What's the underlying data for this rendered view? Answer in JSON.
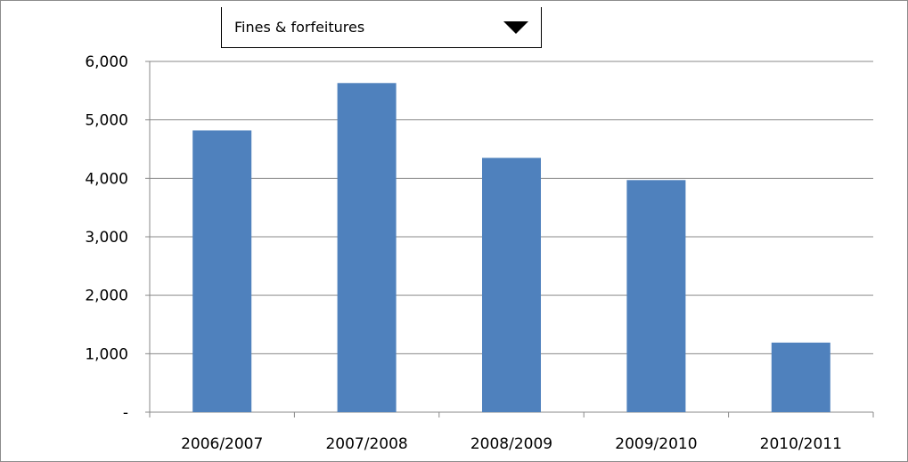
{
  "dropdown": {
    "selected": "Fines & forfeitures"
  },
  "chart_data": {
    "type": "bar",
    "categories": [
      "2006/2007",
      "2007/2008",
      "2008/2009",
      "2009/2010",
      "2010/2011"
    ],
    "values": [
      4820,
      5630,
      4350,
      3970,
      1190
    ],
    "ylim": [
      0,
      6000
    ],
    "yticks": [
      0,
      1000,
      2000,
      3000,
      4000,
      5000,
      6000
    ],
    "ytick_labels": [
      "-",
      "1,000",
      "2,000",
      "3,000",
      "4,000",
      "5,000",
      "6,000"
    ],
    "grid": true,
    "legend": "none",
    "bar_color": "#4f81bd"
  }
}
